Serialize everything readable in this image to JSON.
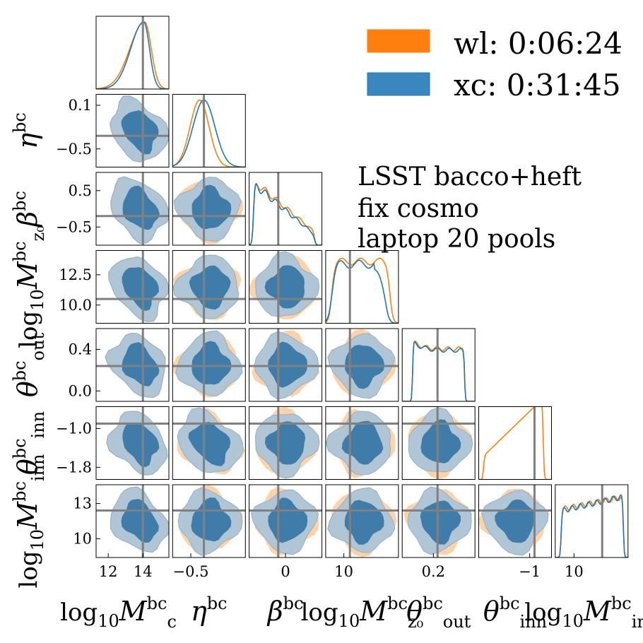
{
  "chart_data": {
    "type": "corner",
    "parameters": [
      {
        "key": "Mc",
        "label": "log10 M_c^bc",
        "ticks": [
          12,
          14
        ],
        "tick_labels": [
          "12",
          "14"
        ],
        "range": [
          11.3,
          15.5
        ],
        "truth": 14.0
      },
      {
        "key": "eta",
        "label": "η^bc",
        "ticks": [
          0.1,
          -0.5
        ],
        "tick_labels": [
          "0.1",
          "−0.5"
        ],
        "range": [
          -0.75,
          0.25
        ],
        "truth": -0.32
      },
      {
        "key": "beta",
        "label": "β^bc",
        "ticks": [
          0.5,
          -0.5,
          0
        ],
        "tick_labels": [
          "0.5",
          "−0.5",
          "0"
        ],
        "range": [
          -1.0,
          1.0
        ],
        "truth": -0.2
      },
      {
        "key": "Mz0",
        "label": "log10 M_z0^bc",
        "ticks": [
          12.5,
          10.0
        ],
        "tick_labels": [
          "12.5",
          "10.0"
        ],
        "range": [
          8.5,
          14.5
        ],
        "truth": 10.5
      },
      {
        "key": "tout",
        "label": "θ_out^bc",
        "ticks": [
          0.4,
          0.0,
          0.2
        ],
        "tick_labels": [
          "0.4",
          "0.0",
          "0.2"
        ],
        "range": [
          -0.1,
          0.6
        ],
        "truth": 0.24
      },
      {
        "key": "tinn",
        "label": "θ_inn^bc",
        "ticks": [
          -1.0,
          -1.8
        ],
        "tick_labels": [
          "−1.0",
          "−1.8"
        ],
        "range": [
          -2.05,
          -0.55
        ],
        "truth": -0.9
      },
      {
        "key": "Minn",
        "label": "log10 M_inn^bc",
        "ticks": [
          13,
          10
        ],
        "tick_labels": [
          "13",
          "10"
        ],
        "range": [
          8.4,
          14.6
        ],
        "truth": 12.4
      }
    ],
    "bottom_tick_labels": [
      "12",
      "14",
      "−0.5",
      "0",
      "10",
      "0.2",
      "−1",
      "10"
    ],
    "series": [
      {
        "name": "wl: 0:06:24",
        "color": "#ff7f0e"
      },
      {
        "name": "xc: 0:31:45",
        "color": "#1f77b4"
      }
    ],
    "annotation": [
      "LSST bacco+heft",
      "fix cosmo",
      "laptop 20 pools"
    ],
    "truth_line_color": "#808080"
  },
  "legend": {
    "items": [
      "wl: 0:06:24",
      "xc: 0:31:45"
    ]
  },
  "annotation": {
    "line1": "LSST bacco+heft",
    "line2": "fix cosmo",
    "line3": "laptop 20 pools"
  },
  "colors": {
    "orange": "#ff7f0e",
    "blue": "#1f77b4",
    "truth": "#808080"
  }
}
